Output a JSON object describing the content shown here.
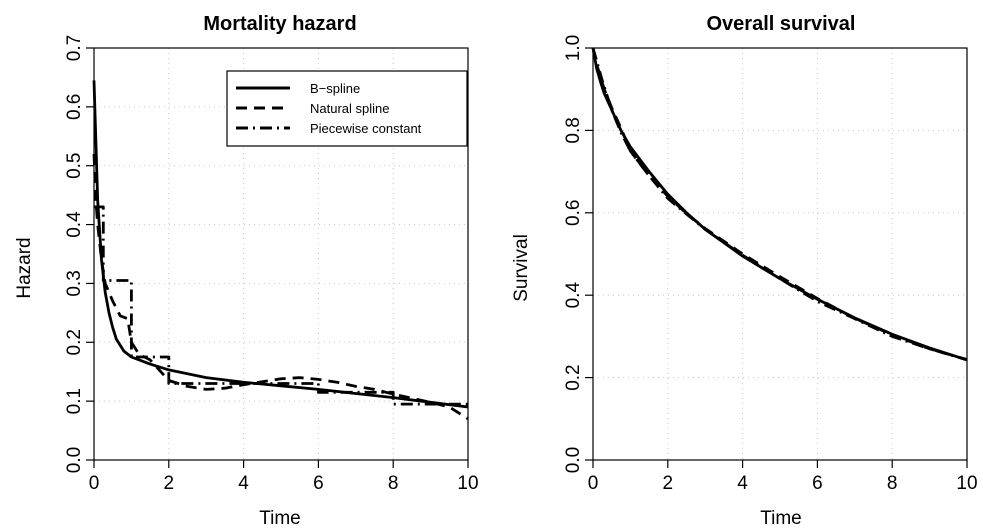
{
  "chart_data": [
    {
      "type": "line",
      "title": "Mortality hazard",
      "xlabel": "Time",
      "ylabel": "Hazard",
      "xlim": [
        0,
        10
      ],
      "ylim": [
        0,
        0.7
      ],
      "xticks": [
        "0",
        "2",
        "4",
        "6",
        "8",
        "10"
      ],
      "yticks": [
        "0.0",
        "0.1",
        "0.2",
        "0.3",
        "0.4",
        "0.5",
        "0.6",
        "0.7"
      ],
      "grid": true,
      "legend_position": "top-right",
      "series": [
        {
          "name": "B−spline",
          "style": "solid",
          "x": [
            0,
            0.05,
            0.1,
            0.2,
            0.3,
            0.4,
            0.5,
            0.6,
            0.8,
            1.0,
            1.5,
            2,
            3,
            4,
            5,
            6,
            7,
            8,
            9,
            10
          ],
          "y": [
            0.645,
            0.54,
            0.44,
            0.34,
            0.285,
            0.25,
            0.225,
            0.205,
            0.185,
            0.175,
            0.163,
            0.153,
            0.14,
            0.132,
            0.126,
            0.12,
            0.113,
            0.106,
            0.098,
            0.09
          ]
        },
        {
          "name": "Natural spline",
          "style": "dashed",
          "x": [
            0,
            0.05,
            0.1,
            0.2,
            0.3,
            0.5,
            0.7,
            0.9,
            1.0,
            1.2,
            1.5,
            2.0,
            2.5,
            3,
            3.5,
            4,
            4.5,
            5,
            5.5,
            6,
            6.5,
            7,
            7.5,
            8,
            8.5,
            9,
            9.5,
            10
          ],
          "y": [
            0.52,
            0.44,
            0.4,
            0.34,
            0.3,
            0.27,
            0.245,
            0.24,
            0.2,
            0.18,
            0.17,
            0.135,
            0.125,
            0.12,
            0.122,
            0.128,
            0.133,
            0.138,
            0.14,
            0.137,
            0.132,
            0.125,
            0.12,
            0.112,
            0.105,
            0.098,
            0.09,
            0.07
          ]
        },
        {
          "name": "Piecewise constant",
          "style": "dashdot",
          "x": [
            0,
            0.25,
            0.25,
            1.0,
            1.0,
            2.0,
            2.0,
            4.0,
            4.0,
            6.0,
            6.0,
            8.0,
            8.0,
            10.0
          ],
          "y": [
            0.43,
            0.43,
            0.305,
            0.305,
            0.175,
            0.175,
            0.13,
            0.13,
            0.13,
            0.13,
            0.115,
            0.115,
            0.095,
            0.095
          ]
        }
      ]
    },
    {
      "type": "line",
      "title": "Overall survival",
      "xlabel": "Time",
      "ylabel": "Survival",
      "xlim": [
        0,
        10
      ],
      "ylim": [
        0,
        1
      ],
      "xticks": [
        "0",
        "2",
        "4",
        "6",
        "8",
        "10"
      ],
      "yticks": [
        "0.0",
        "0.2",
        "0.4",
        "0.6",
        "0.8",
        "1.0"
      ],
      "grid": true,
      "series": [
        {
          "style": "solid",
          "x": [
            0,
            0.1,
            0.2,
            0.3,
            0.5,
            0.75,
            1,
            1.5,
            2,
            2.5,
            3,
            4,
            5,
            6,
            7,
            8,
            9,
            10
          ],
          "y": [
            1.0,
            0.95,
            0.918,
            0.89,
            0.85,
            0.8,
            0.76,
            0.7,
            0.645,
            0.6,
            0.56,
            0.495,
            0.44,
            0.39,
            0.345,
            0.305,
            0.272,
            0.243
          ]
        },
        {
          "style": "dashed",
          "x": [
            0,
            0.1,
            0.2,
            0.3,
            0.5,
            0.75,
            1,
            1.5,
            2,
            2.5,
            3,
            4,
            5,
            6,
            7,
            8,
            9,
            10
          ],
          "y": [
            1.0,
            0.96,
            0.93,
            0.9,
            0.855,
            0.805,
            0.75,
            0.69,
            0.64,
            0.598,
            0.562,
            0.5,
            0.445,
            0.392,
            0.344,
            0.304,
            0.27,
            0.244
          ]
        },
        {
          "style": "dashdot",
          "x": [
            0,
            0.25,
            0.5,
            0.75,
            1,
            1.5,
            2,
            2.5,
            3,
            4,
            5,
            6,
            7,
            8,
            9,
            10
          ],
          "y": [
            1.0,
            0.92,
            0.85,
            0.795,
            0.75,
            0.69,
            0.635,
            0.597,
            0.56,
            0.497,
            0.44,
            0.385,
            0.343,
            0.3,
            0.27,
            0.243
          ]
        }
      ]
    }
  ]
}
